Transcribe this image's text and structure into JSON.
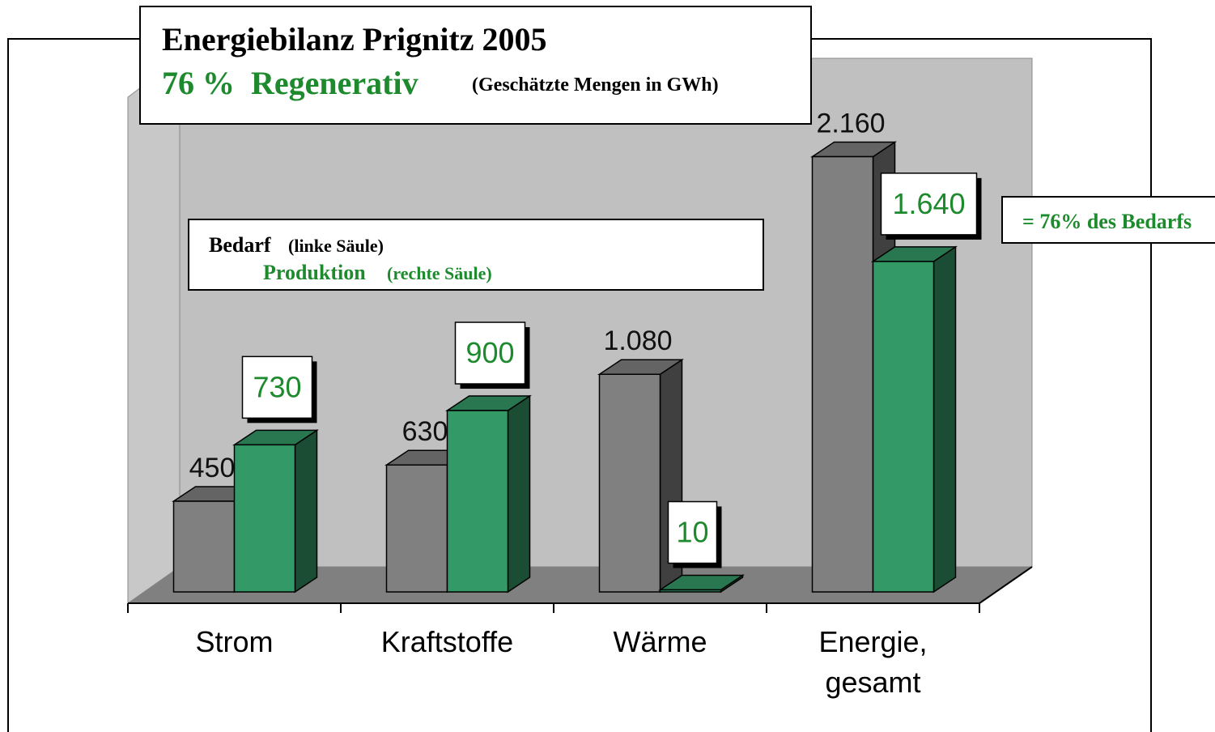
{
  "chart_data": {
    "type": "bar3d",
    "title": "Energiebilanz Prignitz 2005",
    "subtitle": "76 %  Regenerativ",
    "subtitle_note": "(Geschätzte Mengen in GWh)",
    "categories": [
      "Strom",
      "Kraftstoffe",
      "Wärme",
      "Energie, gesamt"
    ],
    "series": [
      {
        "name": "Bedarf",
        "legend_note": "(linke Säule)",
        "color": "#808080",
        "values": [
          450,
          630,
          1080,
          2160
        ],
        "value_labels": [
          "450",
          "630",
          "1.080",
          "2.160"
        ]
      },
      {
        "name": "Produktion",
        "legend_note": "(rechte Säule)",
        "color": "#339966",
        "values": [
          730,
          900,
          10,
          1640
        ],
        "value_labels": [
          "730",
          "900",
          "10",
          "1.640"
        ]
      }
    ],
    "annotation": "= 76% des Bedarfs",
    "ylim": [
      0,
      2600
    ]
  }
}
